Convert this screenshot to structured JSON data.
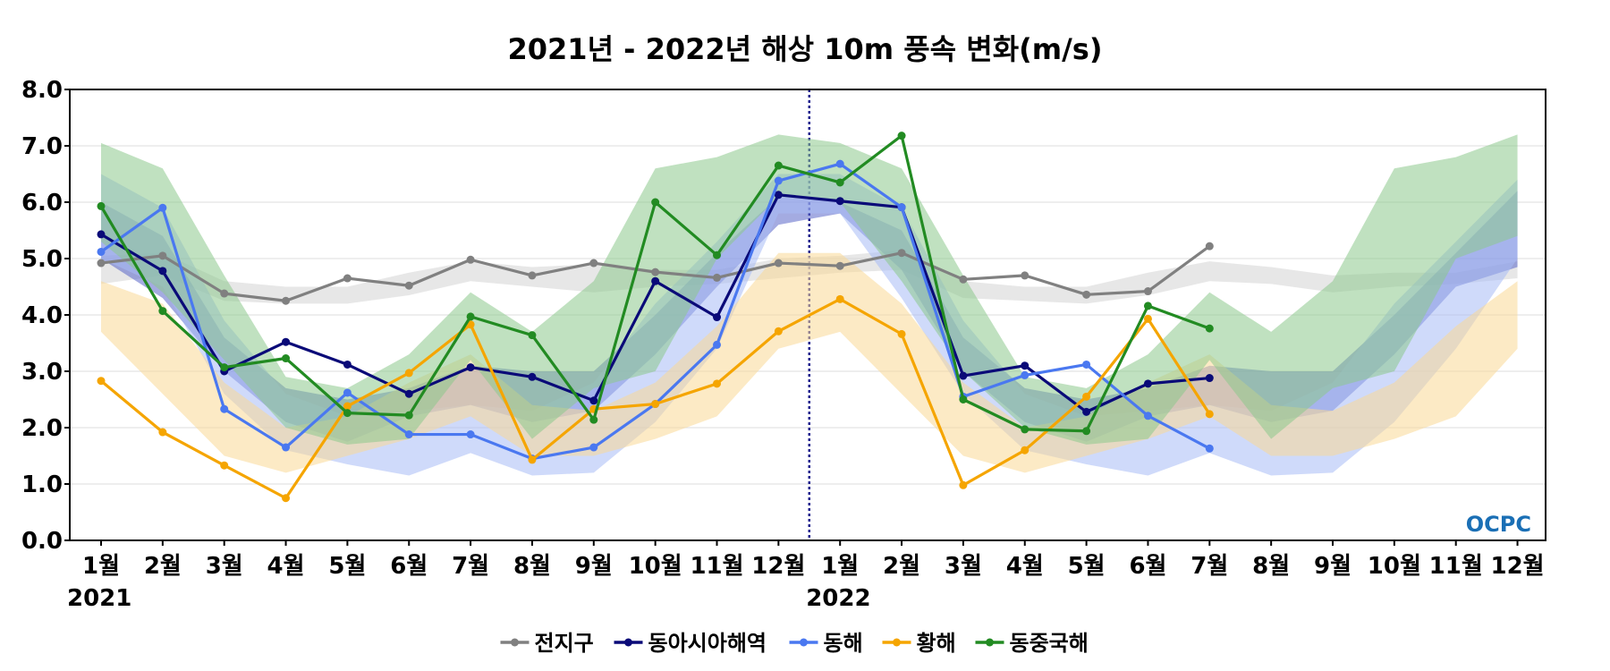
{
  "chart_data": {
    "type": "line",
    "title": "2021년 - 2022년 해상 10m 풍속 변화(m/s)",
    "ylim": [
      0,
      8
    ],
    "yticks": [
      "0.0",
      "1.0",
      "2.0",
      "3.0",
      "4.0",
      "5.0",
      "6.0",
      "7.0",
      "8.0"
    ],
    "x_labels": [
      "1월",
      "2월",
      "3월",
      "4월",
      "5월",
      "6월",
      "7월",
      "8월",
      "9월",
      "10월",
      "11월",
      "12월",
      "1월",
      "2월",
      "3월",
      "4월",
      "5월",
      "6월",
      "7월",
      "8월",
      "9월",
      "10월",
      "11월",
      "12월"
    ],
    "year_labels": [
      {
        "label": "2021",
        "index": 0
      },
      {
        "label": "2022",
        "index": 12
      }
    ],
    "divider_between": [
      11,
      12
    ],
    "grid": true,
    "legend_position": "bottom-center",
    "logo_text": "OCPC",
    "series": [
      {
        "name": "전지구",
        "color": "#808080",
        "band_color": "#d3d3d3",
        "values": [
          4.92,
          5.05,
          4.38,
          4.25,
          4.65,
          4.52,
          4.98,
          4.7,
          4.92,
          4.76,
          4.66,
          4.92,
          4.87,
          5.1,
          4.63,
          4.7,
          4.36,
          4.42,
          5.22,
          null,
          null,
          null,
          null,
          null
        ],
        "band_low": [
          4.55,
          4.7,
          4.25,
          4.2,
          4.2,
          4.35,
          4.6,
          4.5,
          4.4,
          4.5,
          4.55,
          4.65,
          4.75,
          4.8,
          4.3,
          4.25,
          4.2,
          4.35,
          4.6,
          4.55,
          4.4,
          4.5,
          4.55,
          4.65
        ],
        "band_high": [
          5.05,
          5.1,
          4.6,
          4.5,
          4.5,
          4.75,
          4.95,
          4.85,
          4.9,
          4.8,
          4.8,
          5.0,
          5.05,
          5.15,
          4.6,
          4.5,
          4.5,
          4.75,
          4.95,
          4.85,
          4.7,
          4.75,
          4.75,
          4.95
        ]
      },
      {
        "name": "동아시아해역",
        "color": "#0a0a78",
        "band_color": "#5a66c8",
        "values": [
          5.43,
          4.78,
          3.0,
          3.52,
          3.12,
          2.6,
          3.07,
          2.9,
          2.48,
          4.6,
          3.96,
          6.13,
          6.02,
          5.91,
          2.92,
          3.1,
          2.28,
          2.78,
          2.88,
          null,
          null,
          null,
          null,
          null
        ],
        "band_low": [
          5.0,
          4.3,
          3.0,
          2.1,
          1.75,
          2.2,
          2.4,
          2.1,
          2.3,
          3.3,
          4.5,
          5.6,
          5.8,
          4.8,
          3.0,
          2.1,
          1.75,
          2.2,
          2.4,
          2.1,
          2.3,
          3.3,
          4.5,
          4.85
        ],
        "band_high": [
          6.0,
          5.4,
          3.6,
          2.7,
          2.5,
          2.7,
          3.1,
          3.0,
          3.0,
          4.0,
          5.1,
          6.1,
          6.0,
          5.5,
          3.6,
          2.7,
          2.5,
          2.7,
          3.1,
          3.0,
          3.0,
          4.0,
          5.1,
          6.2
        ]
      },
      {
        "name": "동해",
        "color": "#4a78f0",
        "band_color": "#a8bcf5",
        "values": [
          5.12,
          5.9,
          2.33,
          1.65,
          2.62,
          1.88,
          1.88,
          1.45,
          1.65,
          2.42,
          3.47,
          6.38,
          6.68,
          5.91,
          2.55,
          2.93,
          3.12,
          2.21,
          1.63,
          null,
          null,
          null,
          null,
          null
        ],
        "band_low": [
          5.0,
          4.5,
          2.6,
          1.6,
          1.35,
          1.15,
          1.55,
          1.15,
          1.2,
          2.1,
          3.4,
          5.8,
          5.8,
          4.3,
          2.6,
          1.6,
          1.35,
          1.15,
          1.55,
          1.15,
          1.2,
          2.1,
          3.4,
          5.0
        ],
        "band_high": [
          6.5,
          5.9,
          3.9,
          2.6,
          2.2,
          2.3,
          2.4,
          2.3,
          2.8,
          4.2,
          5.3,
          6.5,
          6.5,
          5.9,
          3.9,
          2.6,
          2.2,
          2.3,
          2.4,
          2.3,
          2.8,
          4.2,
          5.3,
          6.4
        ]
      },
      {
        "name": "황해",
        "color": "#f5a500",
        "band_color": "#fad896",
        "values": [
          2.83,
          1.92,
          1.33,
          0.75,
          2.38,
          2.97,
          3.83,
          1.43,
          2.33,
          2.42,
          2.78,
          3.71,
          4.28,
          3.66,
          0.98,
          1.6,
          2.55,
          3.93,
          2.24,
          null,
          null,
          null,
          null,
          null
        ],
        "band_low": [
          3.7,
          2.6,
          1.5,
          1.2,
          1.5,
          1.8,
          2.2,
          1.5,
          1.5,
          1.8,
          2.2,
          3.4,
          3.7,
          2.6,
          1.5,
          1.2,
          1.5,
          1.8,
          2.2,
          1.5,
          1.5,
          1.8,
          2.2,
          3.4
        ],
        "band_high": [
          4.6,
          4.2,
          2.8,
          2.0,
          2.2,
          2.8,
          3.3,
          2.4,
          2.3,
          2.8,
          3.8,
          5.1,
          5.1,
          4.2,
          2.8,
          2.0,
          2.2,
          2.8,
          3.3,
          2.4,
          2.3,
          2.8,
          3.8,
          4.6
        ]
      },
      {
        "name": "동중국해",
        "color": "#228b22",
        "band_color": "#8cc88c",
        "values": [
          5.93,
          4.07,
          3.07,
          3.23,
          2.26,
          2.22,
          3.97,
          3.64,
          2.14,
          6.0,
          5.06,
          6.65,
          6.35,
          7.18,
          2.5,
          1.97,
          1.94,
          4.16,
          3.76,
          null,
          null,
          null,
          null,
          null
        ],
        "band_low": [
          5.3,
          4.4,
          3.2,
          2.0,
          1.7,
          1.8,
          3.2,
          1.8,
          2.7,
          3.0,
          5.0,
          6.1,
          6.0,
          4.6,
          3.0,
          2.0,
          1.7,
          1.8,
          3.2,
          1.8,
          2.7,
          3.0,
          5.0,
          5.4
        ],
        "band_high": [
          7.05,
          6.6,
          4.7,
          2.9,
          2.7,
          3.3,
          4.4,
          3.7,
          4.6,
          6.6,
          6.8,
          7.2,
          7.05,
          6.6,
          4.7,
          2.9,
          2.7,
          3.3,
          4.4,
          3.7,
          4.6,
          6.6,
          6.8,
          7.2
        ]
      }
    ]
  }
}
